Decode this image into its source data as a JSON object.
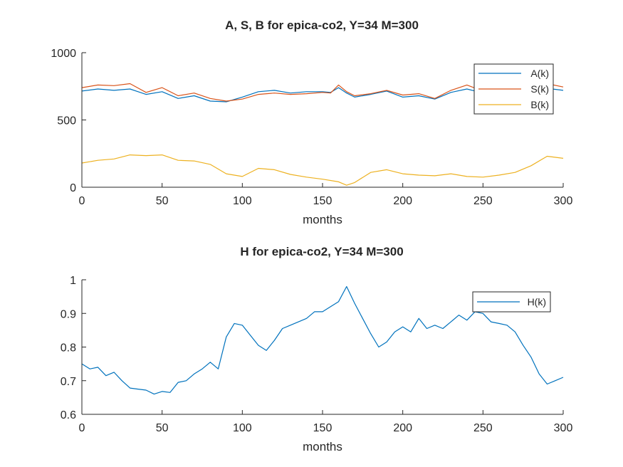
{
  "chart_data": [
    {
      "type": "line",
      "title": "A, S, B for epica-co2, Y=34 M=300",
      "xlabel": "months",
      "ylabel": "",
      "xlim": [
        0,
        300
      ],
      "ylim": [
        0,
        1000
      ],
      "xticks": [
        "0",
        "50",
        "100",
        "150",
        "200",
        "250",
        "300"
      ],
      "yticks": [
        "0",
        "500",
        "1000"
      ],
      "grid": false,
      "legend_position": "top-right",
      "series": [
        {
          "name": "A(k)",
          "color": "#0072BD",
          "x": [
            0,
            10,
            20,
            30,
            40,
            50,
            60,
            70,
            80,
            90,
            100,
            110,
            120,
            130,
            140,
            150,
            155,
            160,
            165,
            170,
            180,
            190,
            200,
            210,
            220,
            230,
            240,
            250,
            260,
            270,
            280,
            290,
            300
          ],
          "y": [
            715,
            730,
            720,
            730,
            690,
            710,
            660,
            680,
            640,
            635,
            670,
            710,
            720,
            700,
            710,
            710,
            705,
            740,
            700,
            670,
            690,
            715,
            670,
            680,
            655,
            705,
            730,
            700,
            695,
            710,
            720,
            735,
            720
          ]
        },
        {
          "name": "S(k)",
          "color": "#D95319",
          "x": [
            0,
            10,
            20,
            30,
            40,
            50,
            60,
            70,
            80,
            90,
            100,
            110,
            120,
            130,
            140,
            150,
            155,
            160,
            165,
            170,
            180,
            190,
            200,
            210,
            220,
            230,
            240,
            250,
            260,
            270,
            280,
            290,
            300
          ],
          "y": [
            740,
            760,
            755,
            770,
            705,
            740,
            680,
            700,
            660,
            640,
            655,
            690,
            700,
            690,
            695,
            705,
            700,
            760,
            710,
            680,
            695,
            720,
            685,
            695,
            660,
            720,
            760,
            715,
            705,
            720,
            740,
            770,
            745
          ]
        },
        {
          "name": "B(k)",
          "color": "#EDB120",
          "x": [
            0,
            10,
            20,
            30,
            40,
            50,
            60,
            70,
            80,
            90,
            100,
            110,
            120,
            130,
            140,
            150,
            160,
            165,
            170,
            180,
            190,
            200,
            210,
            220,
            230,
            240,
            250,
            260,
            270,
            280,
            290,
            300
          ],
          "y": [
            180,
            200,
            210,
            240,
            235,
            240,
            200,
            195,
            170,
            100,
            80,
            140,
            130,
            95,
            75,
            60,
            40,
            15,
            35,
            110,
            130,
            100,
            90,
            85,
            100,
            80,
            75,
            90,
            110,
            160,
            230,
            215
          ]
        }
      ]
    },
    {
      "type": "line",
      "title": "H for epica-co2, Y=34 M=300",
      "xlabel": "months",
      "ylabel": "",
      "xlim": [
        0,
        300
      ],
      "ylim": [
        0.6,
        1
      ],
      "xticks": [
        "0",
        "50",
        "100",
        "150",
        "200",
        "250",
        "300"
      ],
      "yticks": [
        "0.6",
        "0.7",
        "0.8",
        "0.9",
        "1"
      ],
      "grid": false,
      "legend_position": "top-right",
      "series": [
        {
          "name": "H(k)",
          "color": "#0072BD",
          "x": [
            0,
            5,
            10,
            15,
            20,
            25,
            30,
            35,
            40,
            45,
            50,
            55,
            60,
            65,
            70,
            75,
            80,
            85,
            90,
            95,
            100,
            105,
            110,
            115,
            120,
            125,
            130,
            135,
            140,
            145,
            150,
            155,
            160,
            165,
            170,
            175,
            180,
            185,
            190,
            195,
            200,
            205,
            210,
            215,
            220,
            225,
            230,
            235,
            240,
            245,
            250,
            255,
            260,
            265,
            270,
            275,
            280,
            285,
            290,
            295,
            300
          ],
          "y": [
            0.75,
            0.735,
            0.74,
            0.715,
            0.725,
            0.7,
            0.678,
            0.675,
            0.672,
            0.66,
            0.668,
            0.665,
            0.695,
            0.7,
            0.72,
            0.735,
            0.755,
            0.735,
            0.83,
            0.87,
            0.865,
            0.835,
            0.805,
            0.79,
            0.82,
            0.855,
            0.865,
            0.875,
            0.885,
            0.905,
            0.905,
            0.92,
            0.935,
            0.98,
            0.93,
            0.885,
            0.84,
            0.8,
            0.815,
            0.845,
            0.86,
            0.845,
            0.885,
            0.855,
            0.865,
            0.855,
            0.875,
            0.895,
            0.88,
            0.905,
            0.9,
            0.875,
            0.87,
            0.865,
            0.845,
            0.805,
            0.77,
            0.72,
            0.69,
            0.7,
            0.71
          ]
        }
      ]
    }
  ]
}
